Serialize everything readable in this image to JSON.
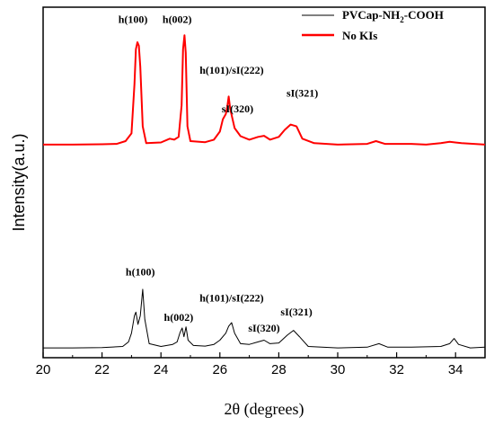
{
  "chart_data": {
    "type": "line",
    "xlabel": "2θ (degrees)",
    "ylabel": "Intensity(a.u.)",
    "xlim": [
      20,
      35
    ],
    "ylim": [
      0,
      10
    ],
    "x_ticks": [
      "20",
      "22",
      "24",
      "26",
      "28",
      "30",
      "32",
      "34"
    ],
    "grid": false,
    "legend_position": "top-right",
    "legend": [
      {
        "label": "PVCap-NH",
        "sub": "2",
        "suffix": "-COOH",
        "color": "#000000"
      },
      {
        "label": "No KIs",
        "sub": "",
        "suffix": "",
        "color": "#ff0000"
      }
    ],
    "series": [
      {
        "name": "No KIs",
        "color": "#ff0000",
        "points": [
          [
            20,
            6.08
          ],
          [
            21,
            6.08
          ],
          [
            22,
            6.09
          ],
          [
            22.5,
            6.1
          ],
          [
            22.8,
            6.18
          ],
          [
            23.0,
            6.4
          ],
          [
            23.1,
            7.8
          ],
          [
            23.15,
            8.8
          ],
          [
            23.2,
            9.0
          ],
          [
            23.25,
            8.9
          ],
          [
            23.3,
            8.3
          ],
          [
            23.38,
            6.6
          ],
          [
            23.5,
            6.12
          ],
          [
            24.0,
            6.14
          ],
          [
            24.3,
            6.25
          ],
          [
            24.45,
            6.22
          ],
          [
            24.6,
            6.3
          ],
          [
            24.7,
            7.2
          ],
          [
            24.75,
            8.8
          ],
          [
            24.8,
            9.2
          ],
          [
            24.84,
            8.7
          ],
          [
            24.9,
            6.6
          ],
          [
            25.0,
            6.18
          ],
          [
            25.5,
            6.15
          ],
          [
            25.8,
            6.22
          ],
          [
            26.0,
            6.45
          ],
          [
            26.1,
            6.8
          ],
          [
            26.2,
            6.95
          ],
          [
            26.25,
            7.15
          ],
          [
            26.3,
            7.45
          ],
          [
            26.35,
            7.1
          ],
          [
            26.5,
            6.55
          ],
          [
            26.7,
            6.32
          ],
          [
            27.0,
            6.22
          ],
          [
            27.3,
            6.3
          ],
          [
            27.5,
            6.33
          ],
          [
            27.7,
            6.22
          ],
          [
            28.0,
            6.3
          ],
          [
            28.2,
            6.5
          ],
          [
            28.4,
            6.65
          ],
          [
            28.6,
            6.6
          ],
          [
            28.8,
            6.25
          ],
          [
            29.2,
            6.12
          ],
          [
            30.0,
            6.08
          ],
          [
            31.0,
            6.1
          ],
          [
            31.3,
            6.18
          ],
          [
            31.6,
            6.1
          ],
          [
            32.5,
            6.1
          ],
          [
            33.0,
            6.08
          ],
          [
            33.5,
            6.12
          ],
          [
            33.8,
            6.16
          ],
          [
            34.2,
            6.12
          ],
          [
            35.0,
            6.08
          ]
        ]
      },
      {
        "name": "PVCap-NH2-COOH",
        "color": "#000000",
        "points": [
          [
            20,
            0.28
          ],
          [
            21,
            0.28
          ],
          [
            22,
            0.29
          ],
          [
            22.7,
            0.32
          ],
          [
            22.9,
            0.45
          ],
          [
            23.0,
            0.7
          ],
          [
            23.1,
            1.2
          ],
          [
            23.15,
            1.3
          ],
          [
            23.22,
            0.95
          ],
          [
            23.3,
            1.2
          ],
          [
            23.38,
            1.95
          ],
          [
            23.45,
            1.1
          ],
          [
            23.6,
            0.4
          ],
          [
            24.0,
            0.32
          ],
          [
            24.4,
            0.38
          ],
          [
            24.55,
            0.45
          ],
          [
            24.65,
            0.72
          ],
          [
            24.72,
            0.85
          ],
          [
            24.78,
            0.6
          ],
          [
            24.85,
            0.88
          ],
          [
            24.92,
            0.5
          ],
          [
            25.1,
            0.35
          ],
          [
            25.5,
            0.33
          ],
          [
            25.8,
            0.38
          ],
          [
            26.0,
            0.5
          ],
          [
            26.2,
            0.7
          ],
          [
            26.3,
            0.9
          ],
          [
            26.4,
            1.0
          ],
          [
            26.5,
            0.7
          ],
          [
            26.7,
            0.4
          ],
          [
            27.0,
            0.38
          ],
          [
            27.3,
            0.45
          ],
          [
            27.5,
            0.5
          ],
          [
            27.7,
            0.4
          ],
          [
            28.0,
            0.42
          ],
          [
            28.3,
            0.65
          ],
          [
            28.5,
            0.78
          ],
          [
            28.7,
            0.6
          ],
          [
            29.0,
            0.32
          ],
          [
            30.0,
            0.28
          ],
          [
            31.0,
            0.3
          ],
          [
            31.4,
            0.4
          ],
          [
            31.7,
            0.3
          ],
          [
            32.5,
            0.3
          ],
          [
            33.5,
            0.32
          ],
          [
            33.8,
            0.4
          ],
          [
            33.95,
            0.55
          ],
          [
            34.1,
            0.38
          ],
          [
            34.5,
            0.28
          ],
          [
            35.0,
            0.3
          ]
        ]
      }
    ],
    "annotations": [
      {
        "text": "h(100)",
        "x": 23.05,
        "y": 9.55,
        "series": "No KIs"
      },
      {
        "text": "h(002)",
        "x": 24.55,
        "y": 9.55,
        "series": "No KIs"
      },
      {
        "text": "h(101)/sI(222)",
        "x": 26.4,
        "y": 8.1,
        "series": "No KIs"
      },
      {
        "text": "sI(320)",
        "x": 26.6,
        "y": 7.0,
        "series": "No KIs"
      },
      {
        "text": "sI(321)",
        "x": 28.8,
        "y": 7.45,
        "series": "No KIs"
      },
      {
        "text": "h(100)",
        "x": 23.3,
        "y": 2.35,
        "series": "PVCap-NH2-COOH"
      },
      {
        "text": "h(002)",
        "x": 24.6,
        "y": 1.05,
        "series": "PVCap-NH2-COOH"
      },
      {
        "text": "h(101)/sI(222)",
        "x": 26.4,
        "y": 1.6,
        "series": "PVCap-NH2-COOH"
      },
      {
        "text": "sI(320)",
        "x": 27.5,
        "y": 0.75,
        "series": "PVCap-NH2-COOH"
      },
      {
        "text": "sI(321)",
        "x": 28.6,
        "y": 1.2,
        "series": "PVCap-NH2-COOH"
      }
    ]
  }
}
